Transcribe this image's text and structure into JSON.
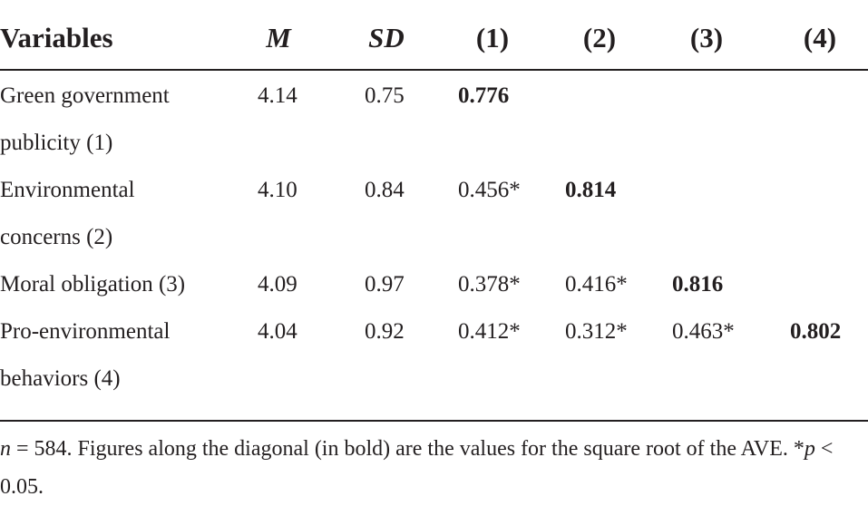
{
  "table": {
    "header": [
      "Variables",
      "M",
      "SD",
      "(1)",
      "(2)",
      "(3)",
      "(4)"
    ],
    "rows": [
      [
        "Green government publicity (1)",
        "4.14",
        "0.75",
        "0.776"
      ],
      [
        "Environmental concerns (2)",
        "4.10",
        "0.84",
        "0.456*",
        "0.814"
      ],
      [
        "Moral obligation (3)",
        "4.09",
        "0.97",
        "0.378*",
        "0.416*",
        "0.816"
      ],
      [
        "Pro-environmental behaviors (4)",
        "4.04",
        "0.92",
        "0.412*",
        "0.312*",
        "0.463*",
        "0.802"
      ]
    ]
  },
  "footnote": [
    "n",
    " = 584. Figures along the diagonal (in bold) are the values for the square root of the AVE. *",
    "p",
    " < 0.05."
  ]
}
